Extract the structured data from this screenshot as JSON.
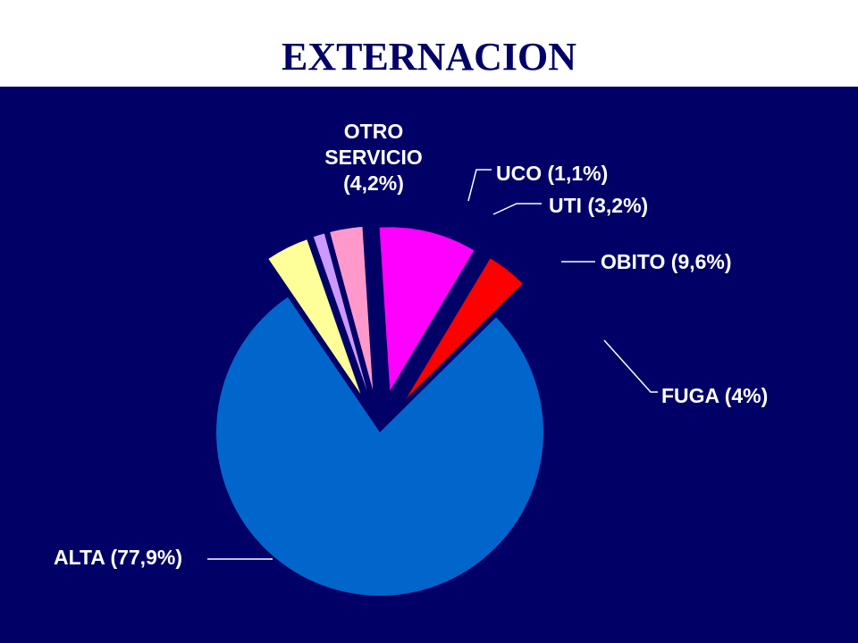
{
  "title": "EXTERNACION",
  "chart_data": {
    "type": "pie",
    "title": "EXTERNACION",
    "slices": [
      {
        "key": "alta",
        "value": 77.9,
        "label_lines": [
          "ALTA (77,9%)"
        ],
        "color": "#0066CC",
        "exploded": false
      },
      {
        "key": "otro",
        "value": 4.2,
        "label_lines": [
          "OTRO",
          "SERVICIO",
          "(4,2%)"
        ],
        "color": "#FFFF99",
        "exploded": true
      },
      {
        "key": "uco",
        "value": 1.1,
        "label_lines": [
          "UCO (1,1%)"
        ],
        "color": "#CC99FF",
        "exploded": true
      },
      {
        "key": "uti",
        "value": 3.2,
        "label_lines": [
          "UTI (3,2%)"
        ],
        "color": "#FF99CC",
        "exploded": true
      },
      {
        "key": "obito",
        "value": 9.6,
        "label_lines": [
          "OBITO (9,6%)"
        ],
        "color": "#FF00FF",
        "exploded": true
      },
      {
        "key": "fuga",
        "value": 4.0,
        "label_lines": [
          "FUGA (4%)"
        ],
        "color": "#FF0000",
        "exploded": true
      }
    ]
  }
}
